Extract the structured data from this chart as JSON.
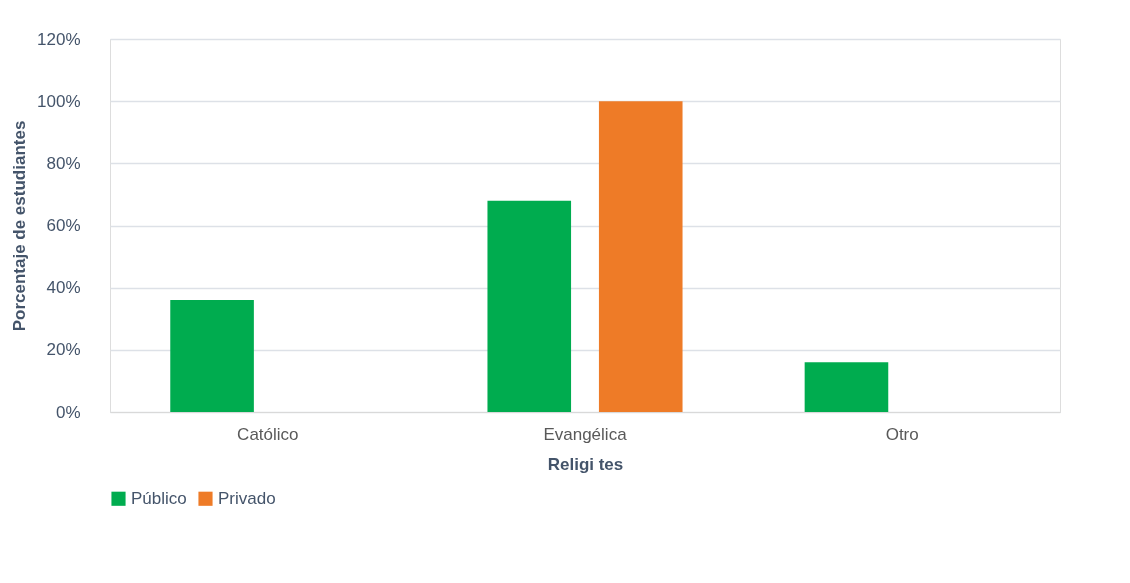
{
  "chart_data": {
    "type": "bar",
    "xlabel": "Religi            tes",
    "ylabel": "Porcentaje de estudiantes",
    "categories": [
      "Católico",
      "Evangélica",
      "Otro"
    ],
    "series": [
      {
        "name": "Público",
        "color": "#00ac4f",
        "values": [
          36,
          68,
          16
        ]
      },
      {
        "name": "Privado",
        "color": "#ee7b27",
        "values": [
          null,
          100,
          null
        ]
      }
    ],
    "ylim": [
      0,
      120
    ],
    "yticks": [
      {
        "value": 0,
        "label": "0%"
      },
      {
        "value": 20,
        "label": "20%"
      },
      {
        "value": 40,
        "label": "40%"
      },
      {
        "value": 60,
        "label": "60%"
      },
      {
        "value": 80,
        "label": "80%"
      },
      {
        "value": 100,
        "label": "100%"
      },
      {
        "value": 120,
        "label": "120%"
      }
    ],
    "grid": "y",
    "legend": "bottom"
  }
}
